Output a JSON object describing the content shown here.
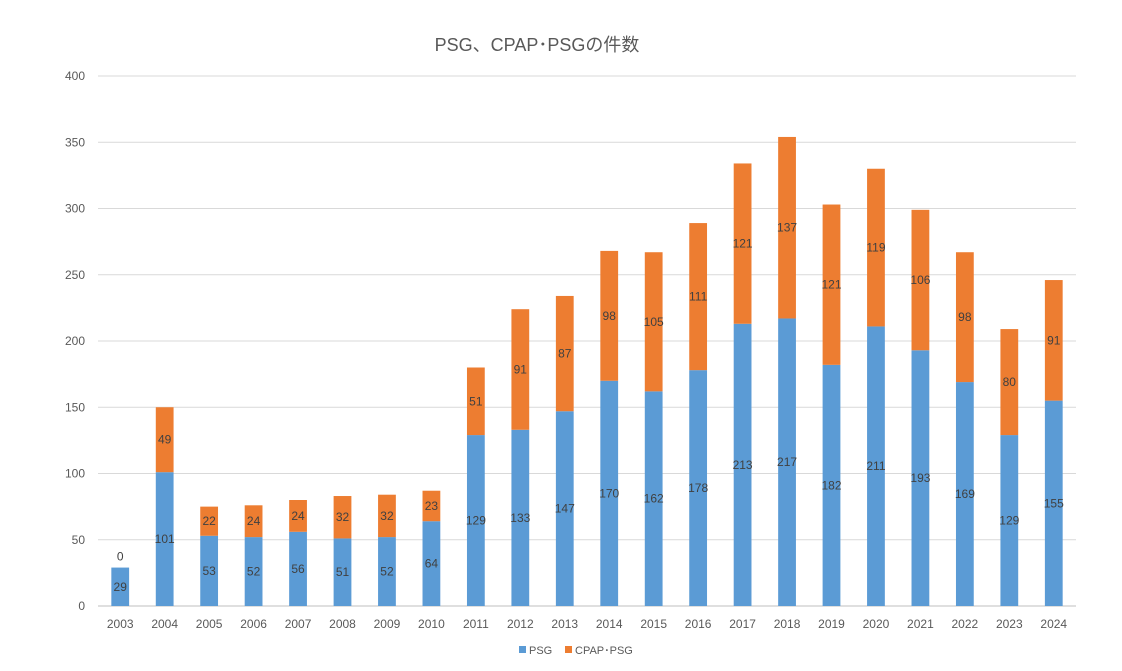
{
  "chart_data": {
    "type": "bar",
    "stacked": true,
    "title": "PSG、CPAP･PSGの件数",
    "xlabel": "",
    "ylabel": "",
    "ylim": [
      0,
      400
    ],
    "yticks": [
      0,
      50,
      100,
      150,
      200,
      250,
      300,
      350,
      400
    ],
    "grid": true,
    "legend_position": "bottom",
    "categories": [
      "2003",
      "2004",
      "2005",
      "2006",
      "2007",
      "2008",
      "2009",
      "2010",
      "2011",
      "2012",
      "2013",
      "2014",
      "2015",
      "2016",
      "2017",
      "2018",
      "2019",
      "2020",
      "2021",
      "2022",
      "2023",
      "2024"
    ],
    "series": [
      {
        "name": "PSG",
        "color": "#5B9BD5",
        "values": [
          29,
          101,
          53,
          52,
          56,
          51,
          52,
          64,
          129,
          133,
          147,
          170,
          162,
          178,
          213,
          217,
          182,
          211,
          193,
          169,
          129,
          155
        ]
      },
      {
        "name": "CPAP･PSG",
        "color": "#ED7D31",
        "values": [
          0,
          49,
          22,
          24,
          24,
          32,
          32,
          23,
          51,
          91,
          87,
          98,
          105,
          111,
          121,
          137,
          121,
          119,
          106,
          98,
          80,
          91
        ]
      }
    ]
  }
}
